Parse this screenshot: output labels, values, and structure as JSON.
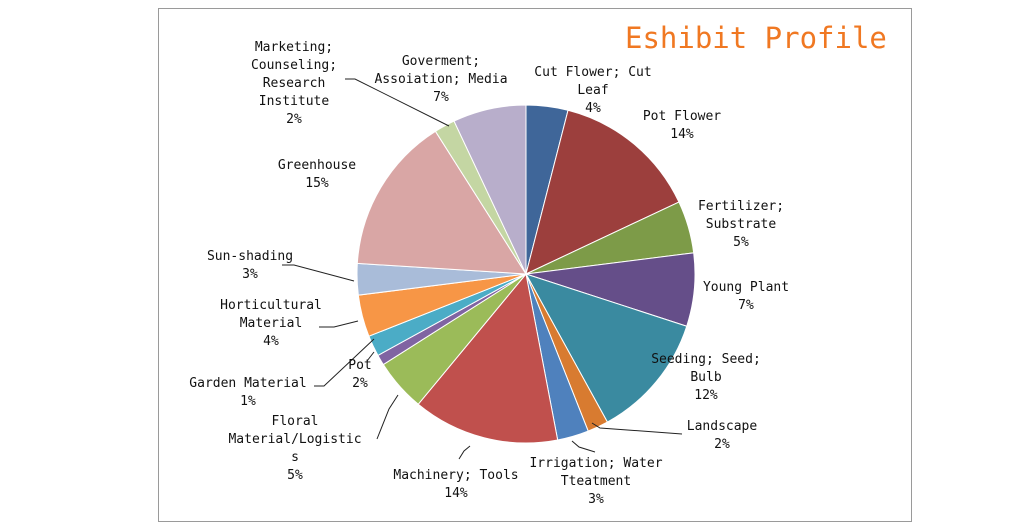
{
  "chart_data": {
    "type": "pie",
    "title": "Eshibit Profile",
    "grid": false,
    "legend": "none",
    "slices": [
      {
        "name": "Cut Flower; Cut Leaf",
        "value": 4,
        "label": "4%",
        "color": "#3f6699"
      },
      {
        "name": "Pot Flower",
        "value": 14,
        "label": "14%",
        "color": "#9c3f3d"
      },
      {
        "name": "Fertilizer; Substrate",
        "value": 5,
        "label": "5%",
        "color": "#7d9b48"
      },
      {
        "name": "Young Plant",
        "value": 7,
        "label": "7%",
        "color": "#654e89"
      },
      {
        "name": "Seeding; Seed; Bulb",
        "value": 12,
        "label": "12%",
        "color": "#3a8aa0"
      },
      {
        "name": "Landscape",
        "value": 2,
        "label": "2%",
        "color": "#d87b30"
      },
      {
        "name": "Irrigation; Water Tteatment",
        "value": 3,
        "label": "3%",
        "color": "#4f81bd"
      },
      {
        "name": "Machinery; Tools",
        "value": 14,
        "label": "14%",
        "color": "#c0504d"
      },
      {
        "name": "Floral Material/Logistics",
        "value": 5,
        "label": "5%",
        "color": "#9bbb59"
      },
      {
        "name": "Garden Material",
        "value": 1,
        "label": "1%",
        "color": "#8064a2"
      },
      {
        "name": "Pot",
        "value": 2,
        "label": "2%",
        "color": "#4bacc6"
      },
      {
        "name": "Horticultural Material",
        "value": 4,
        "label": "4%",
        "color": "#f79646"
      },
      {
        "name": "Sun-shading",
        "value": 3,
        "label": "3%",
        "color": "#a9bcd9"
      },
      {
        "name": "Greenhouse",
        "value": 15,
        "label": "15%",
        "color": "#d9a6a5"
      },
      {
        "name": "Marketing; Counseling; Research Institute",
        "value": 2,
        "label": "2%",
        "color": "#c4d6a3"
      },
      {
        "name": "Goverment; Assoiation; Media",
        "value": 7,
        "label": "7%",
        "color": "#b8aecb"
      }
    ]
  }
}
